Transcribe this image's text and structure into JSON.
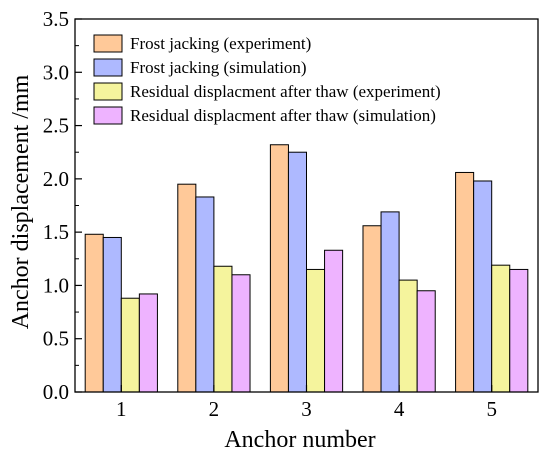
{
  "chart_data": {
    "type": "bar",
    "xlabel": "Anchor number",
    "ylabel": "Anchor displacement /mm",
    "categories": [
      "1",
      "2",
      "3",
      "4",
      "5"
    ],
    "ylim": [
      0,
      3.5
    ],
    "yticks": [
      "0.0",
      "0.5",
      "1.0",
      "1.5",
      "2.0",
      "2.5",
      "3.0",
      "3.5"
    ],
    "grid": false,
    "legend_position": "top-left",
    "series": [
      {
        "name": "Frost jacking (experiment)",
        "color": "#FFC999",
        "values": [
          1.48,
          1.95,
          2.32,
          1.56,
          2.06
        ]
      },
      {
        "name": "Frost jacking (simulation)",
        "color": "#AEB9FF",
        "values": [
          1.45,
          1.83,
          2.25,
          1.69,
          1.98
        ]
      },
      {
        "name": "Residual displacment after thaw (experiment)",
        "color": "#F5F49D",
        "values": [
          0.88,
          1.18,
          1.15,
          1.05,
          1.19
        ]
      },
      {
        "name": "Residual displacment after thaw (simulation)",
        "color": "#EEB3FF",
        "values": [
          0.92,
          1.1,
          1.33,
          0.95,
          1.15
        ]
      }
    ]
  }
}
